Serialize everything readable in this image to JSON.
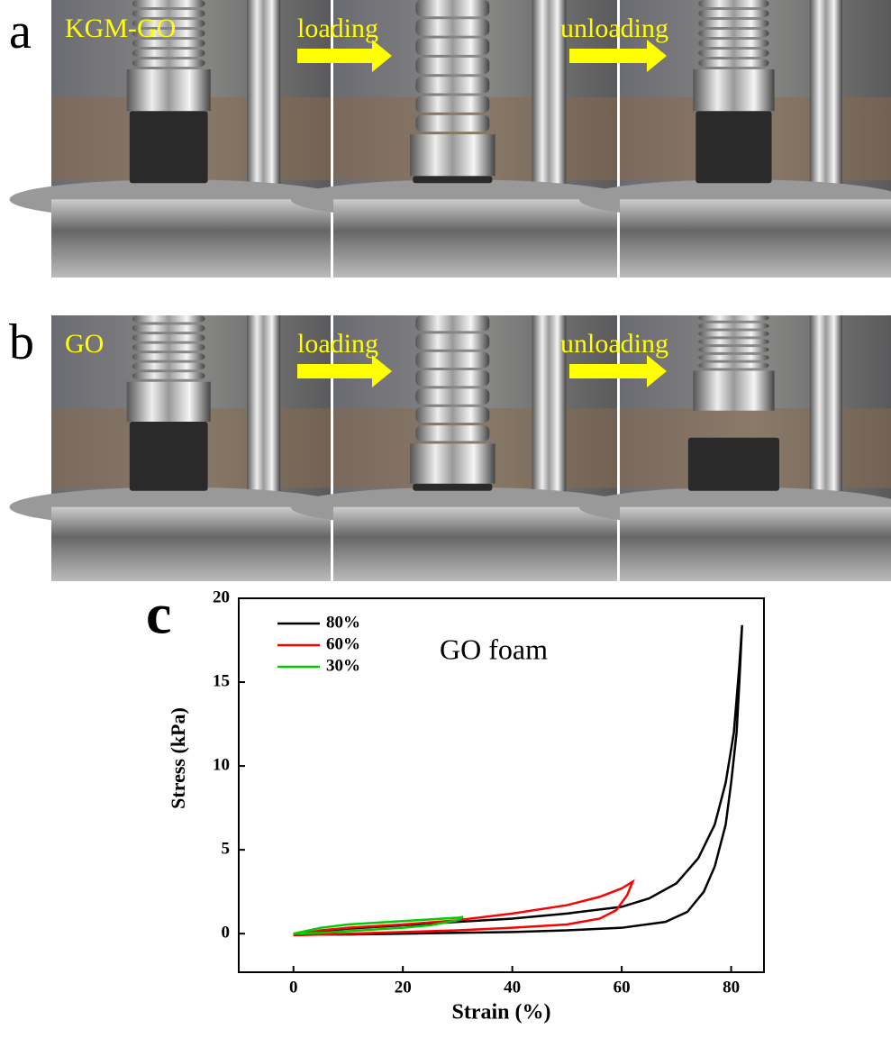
{
  "panel_a": {
    "label": "a",
    "texts": [
      "KGM-GO",
      "loading",
      "unloading"
    ]
  },
  "panel_b": {
    "label": "b",
    "texts": [
      "GO",
      "loading",
      "unloading"
    ]
  },
  "chart_data": {
    "type": "line",
    "panel_label": "c",
    "annotation": "GO foam",
    "x_label": "Strain (%)",
    "y_label": "Stress (kPa)",
    "xlim": [
      -10,
      86
    ],
    "ylim": [
      -2.3,
      20
    ],
    "xticks": [
      0,
      20,
      40,
      60,
      80
    ],
    "yticks": [
      0,
      5,
      10,
      15,
      20
    ],
    "legend": "upper left",
    "series": [
      {
        "name": "80%",
        "color": "#000000",
        "x": [
          0,
          10,
          20,
          30,
          40,
          50,
          60,
          65,
          70,
          74,
          77,
          79,
          80.5,
          81.5,
          82,
          81.5,
          81,
          80,
          79,
          77,
          75,
          72,
          68,
          60,
          50,
          40,
          30,
          20,
          10,
          0
        ],
        "values": [
          0,
          0.3,
          0.5,
          0.7,
          0.9,
          1.2,
          1.6,
          2.1,
          3,
          4.5,
          6.5,
          9,
          12,
          16,
          18.4,
          15,
          12,
          9,
          6.5,
          4,
          2.5,
          1.3,
          0.7,
          0.35,
          0.2,
          0.1,
          0.05,
          0,
          -0.05,
          -0.05
        ]
      },
      {
        "name": "60%",
        "color": "#ff0000",
        "x": [
          0,
          5,
          10,
          20,
          30,
          40,
          50,
          56,
          60,
          62,
          61,
          59,
          56,
          50,
          40,
          30,
          20,
          10,
          0
        ],
        "values": [
          -0.1,
          0.2,
          0.35,
          0.55,
          0.8,
          1.2,
          1.7,
          2.2,
          2.7,
          3.1,
          2.3,
          1.4,
          0.9,
          0.55,
          0.35,
          0.2,
          0.1,
          0,
          -0.1
        ]
      },
      {
        "name": "30%",
        "color": "#00cc00",
        "x": [
          0,
          5,
          10,
          15,
          20,
          25,
          30,
          31,
          30,
          25,
          20,
          15,
          10,
          5,
          0
        ],
        "values": [
          0,
          0.35,
          0.55,
          0.65,
          0.75,
          0.85,
          0.95,
          1.0,
          0.8,
          0.5,
          0.35,
          0.25,
          0.15,
          0.05,
          0
        ]
      }
    ]
  }
}
